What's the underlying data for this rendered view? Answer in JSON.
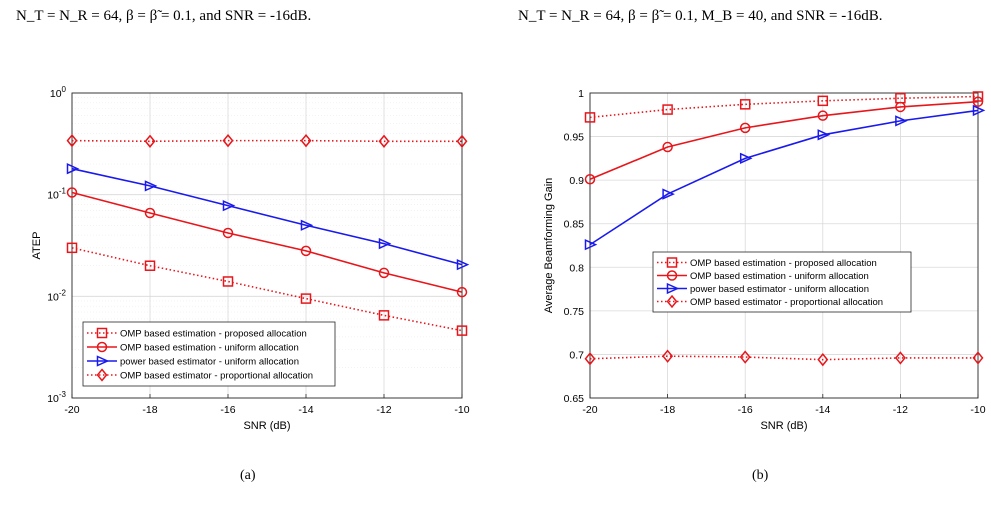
{
  "captions": {
    "left": "N_T = N_R = 64, β = β̃ = 0.1, and SNR = -16dB.",
    "right": "N_T = N_R = 64, β = β̃ = 0.1, M_B = 40, and SNR = -16dB."
  },
  "subfig_labels": {
    "a": "(a)",
    "b": "(b)"
  },
  "colors": {
    "red": "#e8161b",
    "blue": "#1a1aee",
    "grid": "#d9d9d9",
    "minorgrid": "#ececec"
  },
  "chart_data": [
    {
      "type": "line",
      "yscale": "log",
      "xlabel": "SNR (dB)",
      "ylabel": "ATEP",
      "xlim": [
        -20,
        -10
      ],
      "ylim": [
        0.001,
        1
      ],
      "x_ticks": [
        -20,
        -18,
        -16,
        -14,
        -12,
        -10
      ],
      "y_tick_labels": [
        {
          "value": 1,
          "base": "10",
          "exp": "0"
        },
        {
          "value": 0.1,
          "base": "10",
          "exp": "-1"
        },
        {
          "value": 0.01,
          "base": "10",
          "exp": "-2"
        },
        {
          "value": 0.001,
          "base": "10",
          "exp": "-3"
        }
      ],
      "grid": true,
      "legend_position": "bottom-left",
      "x": [
        -20,
        -18,
        -16,
        -14,
        -12,
        -10
      ],
      "series": [
        {
          "name": "OMP based estimation - proposed allocation",
          "color": "#e8161b",
          "dash": "dotted",
          "marker": "square",
          "values": [
            0.03,
            0.02,
            0.014,
            0.0095,
            0.0065,
            0.0046
          ]
        },
        {
          "name": "OMP based estimation - uniform allocation",
          "color": "#e8161b",
          "dash": "solid",
          "marker": "circle",
          "values": [
            0.105,
            0.066,
            0.042,
            0.028,
            0.017,
            0.011
          ]
        },
        {
          "name": "power based estimator - uniform allocation",
          "color": "#1a1aee",
          "dash": "solid",
          "marker": "triangle-right",
          "values": [
            0.18,
            0.122,
            0.078,
            0.05,
            0.033,
            0.0205
          ]
        },
        {
          "name": "OMP based estimator - proportional allocation",
          "color": "#e8161b",
          "dash": "dotted",
          "marker": "diamond",
          "values": [
            0.34,
            0.335,
            0.34,
            0.34,
            0.335,
            0.335
          ]
        }
      ]
    },
    {
      "type": "line",
      "yscale": "linear",
      "xlabel": "SNR (dB)",
      "ylabel": "Average Beamforming Gain",
      "xlim": [
        -20,
        -10
      ],
      "ylim": [
        0.65,
        1
      ],
      "x_ticks": [
        -20,
        -18,
        -16,
        -14,
        -12,
        -10
      ],
      "y_ticks": [
        0.65,
        0.7,
        0.75,
        0.8,
        0.85,
        0.9,
        0.95,
        1
      ],
      "y_tick_labels": [
        "0.65",
        "0.7",
        "0.75",
        "0.8",
        "0.85",
        "0.9",
        "0.95",
        "1"
      ],
      "grid": true,
      "legend_position": "center",
      "x": [
        -20,
        -18,
        -16,
        -14,
        -12,
        -10
      ],
      "series": [
        {
          "name": "OMP based estimation - proposed allocation",
          "color": "#e8161b",
          "dash": "dotted",
          "marker": "square",
          "values": [
            0.972,
            0.981,
            0.987,
            0.991,
            0.994,
            0.996
          ]
        },
        {
          "name": "OMP based estimation - uniform allocation",
          "color": "#e8161b",
          "dash": "solid",
          "marker": "circle",
          "values": [
            0.901,
            0.938,
            0.96,
            0.974,
            0.984,
            0.99
          ]
        },
        {
          "name": "power based estimator - uniform allocation",
          "color": "#1a1aee",
          "dash": "solid",
          "marker": "triangle-right",
          "values": [
            0.826,
            0.884,
            0.925,
            0.952,
            0.968,
            0.98
          ]
        },
        {
          "name": "OMP based estimator - proportional allocation",
          "color": "#e8161b",
          "dash": "dotted",
          "marker": "diamond",
          "values": [
            0.695,
            0.698,
            0.697,
            0.694,
            0.696,
            0.696
          ]
        }
      ]
    }
  ]
}
